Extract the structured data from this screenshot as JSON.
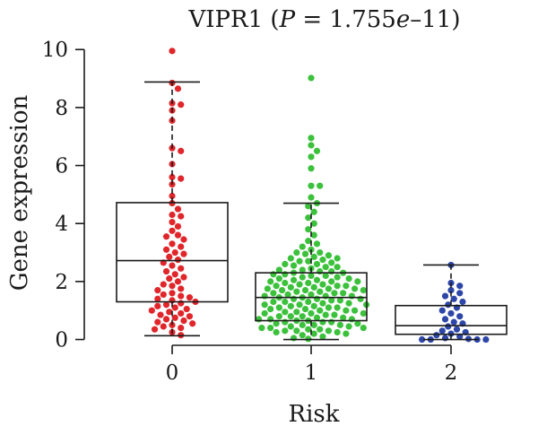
{
  "chart_data": {
    "type": "box-swarm",
    "title": {
      "gene": "VIPR1",
      "open": " (",
      "p_symbol": "P",
      "equals": " = 1.755",
      "e_symbol": "e",
      "exponent": "–11",
      "close": ")"
    },
    "xlabel": "Risk",
    "ylabel": "Gene expression",
    "ylim": [
      -0.2,
      10.1
    ],
    "yticks": [
      0,
      2,
      4,
      6,
      8,
      10
    ],
    "categories": [
      "0",
      "1",
      "2"
    ],
    "colors": [
      "#e0262b",
      "#3cc13c",
      "#2d46a8"
    ],
    "boxes": [
      {
        "category": "0",
        "q1": 1.3,
        "median": 2.72,
        "q3": 4.72,
        "whisker_low": 0.13,
        "whisker_high": 8.88
      },
      {
        "category": "1",
        "q1": 0.65,
        "median": 1.45,
        "q3": 2.3,
        "whisker_low": 0.0,
        "whisker_high": 4.7
      },
      {
        "category": "2",
        "q1": 0.18,
        "median": 0.48,
        "q3": 1.17,
        "whisker_low": 0.0,
        "whisker_high": 2.57
      }
    ],
    "points": [
      [
        9.95,
        8.85,
        8.65,
        8.15,
        8.1,
        7.9,
        7.55,
        6.6,
        6.5,
        6.05,
        5.6,
        5.55,
        5.35,
        4.95,
        4.7,
        4.5,
        4.3,
        4.25,
        4.05,
        3.9,
        3.75,
        3.6,
        3.55,
        3.45,
        3.3,
        3.2,
        3.1,
        3.0,
        2.95,
        2.85,
        2.75,
        2.65,
        2.55,
        2.45,
        2.35,
        2.25,
        2.15,
        2.1,
        2.0,
        1.9,
        1.85,
        1.75,
        1.7,
        1.6,
        1.55,
        1.5,
        1.45,
        1.4,
        1.35,
        1.3,
        1.25,
        1.2,
        1.15,
        1.1,
        1.05,
        1.0,
        0.95,
        0.9,
        0.85,
        0.8,
        0.75,
        0.7,
        0.65,
        0.6,
        0.55,
        0.5,
        0.45,
        0.4,
        0.35,
        0.25,
        0.15
      ],
      [
        9.02,
        6.95,
        6.7,
        6.5,
        6.3,
        5.9,
        5.3,
        5.3,
        4.9,
        4.7,
        4.6,
        4.4,
        4.2,
        4.0,
        3.8,
        3.6,
        3.4,
        3.3,
        3.2,
        3.1,
        3.0,
        3.0,
        2.95,
        2.9,
        2.85,
        2.8,
        2.8,
        2.75,
        2.7,
        2.7,
        2.65,
        2.6,
        2.6,
        2.55,
        2.5,
        2.5,
        2.45,
        2.4,
        2.4,
        2.35,
        2.35,
        2.3,
        2.3,
        2.25,
        2.25,
        2.2,
        2.2,
        2.15,
        2.15,
        2.1,
        2.1,
        2.05,
        2.05,
        2.0,
        2.0,
        2.0,
        1.95,
        1.95,
        1.9,
        1.9,
        1.85,
        1.85,
        1.85,
        1.8,
        1.8,
        1.75,
        1.75,
        1.75,
        1.7,
        1.7,
        1.7,
        1.65,
        1.65,
        1.6,
        1.6,
        1.6,
        1.55,
        1.55,
        1.5,
        1.5,
        1.5,
        1.45,
        1.45,
        1.4,
        1.4,
        1.4,
        1.35,
        1.35,
        1.3,
        1.3,
        1.3,
        1.25,
        1.25,
        1.2,
        1.2,
        1.2,
        1.15,
        1.15,
        1.1,
        1.1,
        1.1,
        1.05,
        1.05,
        1.0,
        1.0,
        1.0,
        0.95,
        0.95,
        0.9,
        0.9,
        0.9,
        0.85,
        0.85,
        0.8,
        0.8,
        0.8,
        0.75,
        0.75,
        0.7,
        0.7,
        0.7,
        0.65,
        0.65,
        0.6,
        0.6,
        0.6,
        0.55,
        0.55,
        0.5,
        0.5,
        0.5,
        0.45,
        0.45,
        0.4,
        0.4,
        0.4,
        0.35,
        0.35,
        0.3,
        0.3,
        0.3,
        0.25,
        0.25,
        0.2,
        0.2,
        0.15,
        0.1,
        0.05,
        0.02
      ],
      [
        2.57,
        1.95,
        1.85,
        1.7,
        1.6,
        1.5,
        1.4,
        1.3,
        1.2,
        1.1,
        1.0,
        0.9,
        0.8,
        0.7,
        0.6,
        0.55,
        0.45,
        0.35,
        0.3,
        0.25,
        0.2,
        0.15,
        0.1,
        0.05,
        0.02,
        0.0,
        0.0,
        0.0,
        0.0
      ]
    ]
  }
}
